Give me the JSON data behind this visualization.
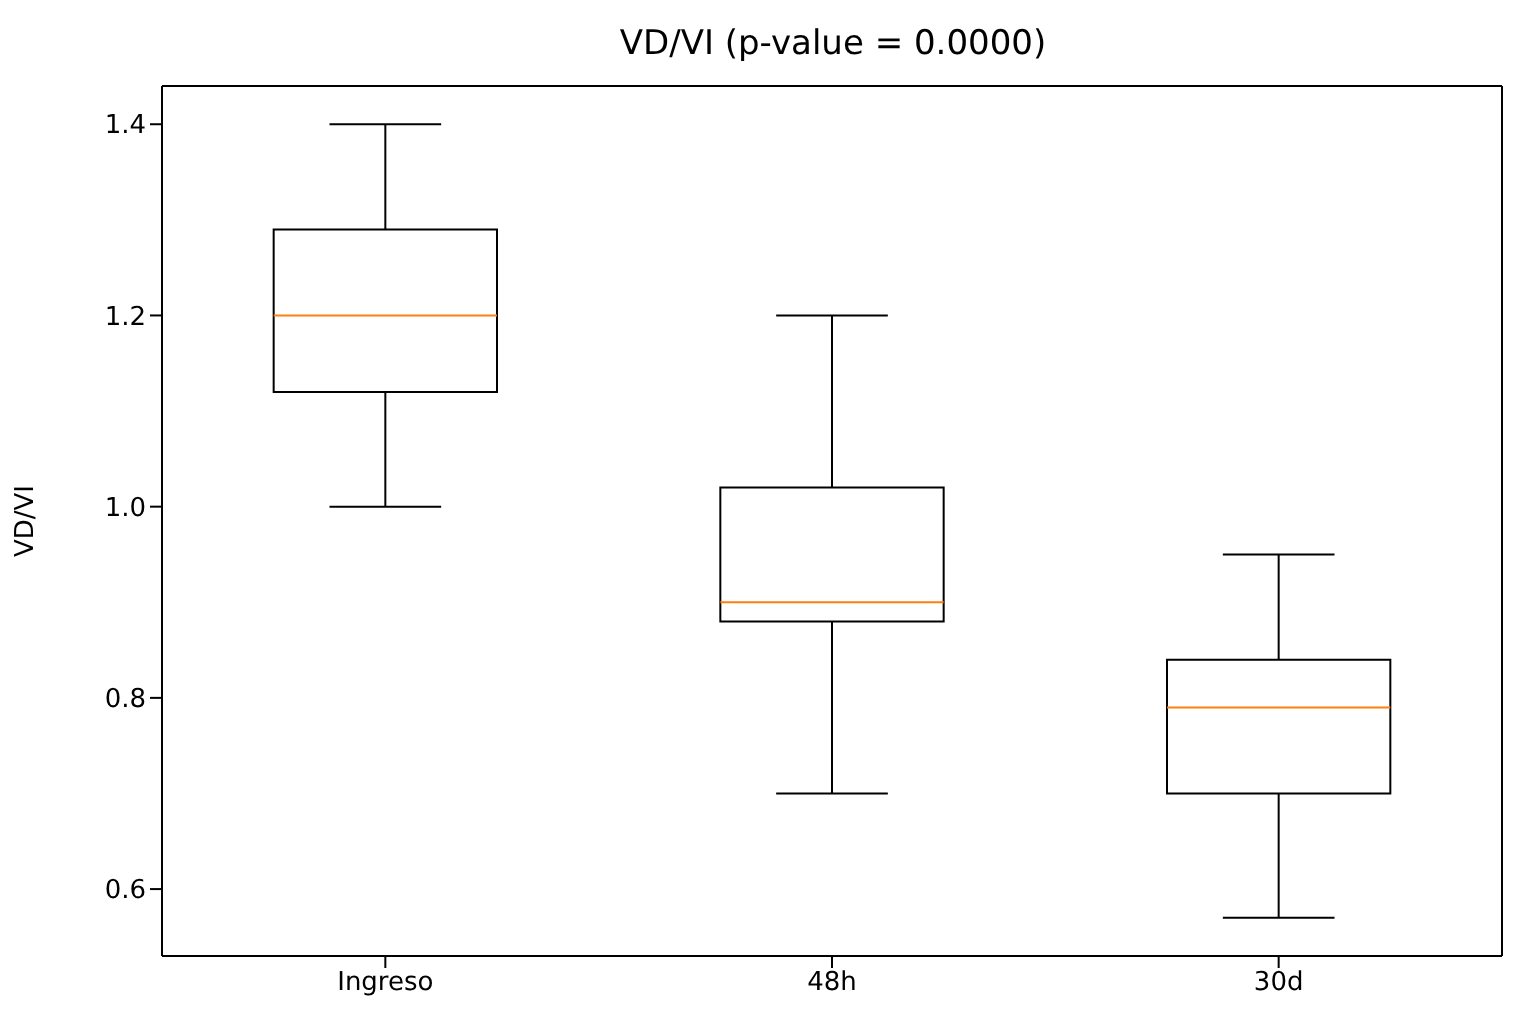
{
  "chart_data": {
    "type": "box",
    "title": "VD/VI (p-value = 0.0000)",
    "ylabel": "VD/VI",
    "categories": [
      "Ingreso",
      "48h",
      "30d"
    ],
    "boxes": [
      {
        "low": 1.0,
        "q1": 1.12,
        "median": 1.2,
        "q3": 1.29,
        "high": 1.4
      },
      {
        "low": 0.7,
        "q1": 0.88,
        "median": 0.9,
        "q3": 1.02,
        "high": 1.2
      },
      {
        "low": 0.57,
        "q1": 0.7,
        "median": 0.79,
        "q3": 0.84,
        "high": 0.95
      }
    ],
    "color": "#000000",
    "ylim": [
      0.53,
      1.44
    ],
    "yticks": [
      {
        "value": 0.6,
        "label": "0.6"
      },
      {
        "value": 0.8,
        "label": "0.8"
      },
      {
        "value": 1.0,
        "label": "1.0"
      },
      {
        "value": 1.2,
        "label": "1.2"
      },
      {
        "value": 1.4,
        "label": "1.4"
      }
    ],
    "grid": false,
    "legend": false
  }
}
